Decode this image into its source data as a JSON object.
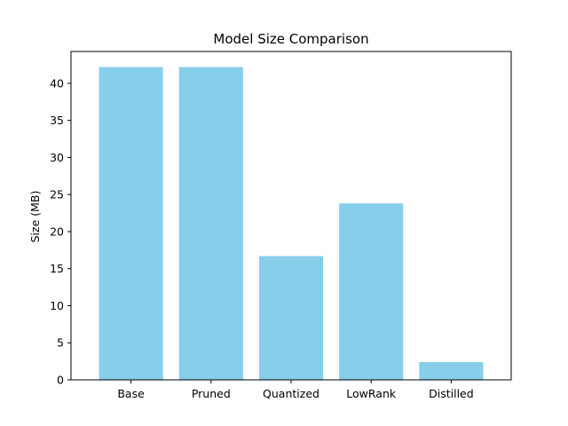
{
  "chart_data": {
    "type": "bar",
    "title": "Model Size Comparison",
    "xlabel": "",
    "ylabel": "Size (MB)",
    "categories": [
      "Base",
      "Pruned",
      "Quantized",
      "LowRank",
      "Distilled"
    ],
    "values": [
      42.2,
      42.2,
      16.7,
      23.8,
      2.4
    ],
    "ylim": [
      0,
      44.3
    ],
    "yticks": [
      0,
      5,
      10,
      15,
      20,
      25,
      30,
      35,
      40
    ],
    "bar_color": "#87ceeb",
    "grid": false
  }
}
